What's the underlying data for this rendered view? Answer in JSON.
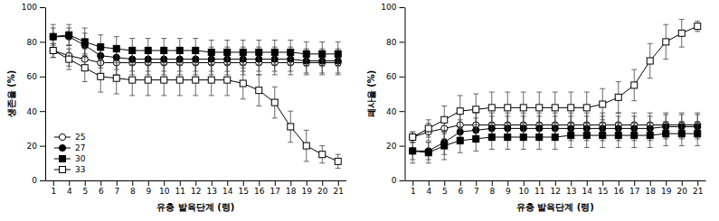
{
  "chart_data": [
    {
      "type": "line",
      "x_label": "유충 발육단계 (령)",
      "y_label": "생존율 (%)",
      "categories": [
        "1",
        "4",
        "5",
        "6",
        "7",
        "8",
        "9",
        "10",
        "11",
        "12",
        "13",
        "14",
        "15",
        "16",
        "17",
        "18",
        "19",
        "20",
        "21"
      ],
      "ylim": [
        0,
        100
      ],
      "yticks": [
        0,
        20,
        40,
        60,
        80,
        100
      ],
      "legend": "lower left",
      "series": [
        {
          "name": "25",
          "color": "#000000",
          "marker": "circle-open",
          "values": [
            75,
            72,
            70,
            68,
            68,
            68,
            68,
            68,
            68,
            68,
            68,
            68,
            68,
            68,
            68,
            68,
            68,
            68,
            68
          ],
          "errors": [
            4,
            6,
            6,
            7,
            7,
            7,
            7,
            7,
            7,
            7,
            7,
            7,
            7,
            7,
            7,
            7,
            7,
            7,
            7
          ]
        },
        {
          "name": "27",
          "color": "#000000",
          "marker": "circle",
          "values": [
            83,
            83,
            78,
            72,
            71,
            70,
            70,
            70,
            70,
            70,
            70,
            70,
            70,
            70,
            70,
            70,
            69,
            69,
            69
          ],
          "errors": [
            5,
            5,
            7,
            7,
            7,
            7,
            7,
            7,
            7,
            7,
            7,
            7,
            7,
            7,
            7,
            7,
            7,
            7,
            7
          ]
        },
        {
          "name": "30",
          "color": "#000000",
          "marker": "square",
          "values": [
            83,
            84,
            80,
            77,
            76,
            75,
            75,
            75,
            75,
            75,
            74,
            74,
            74,
            74,
            74,
            74,
            73,
            73,
            73
          ],
          "errors": [
            7,
            6,
            8,
            7,
            7,
            7,
            7,
            7,
            7,
            7,
            7,
            7,
            7,
            7,
            7,
            7,
            7,
            7,
            7
          ]
        },
        {
          "name": "33",
          "color": "#000000",
          "marker": "square-open",
          "values": [
            75,
            70,
            65,
            60,
            59,
            58,
            58,
            58,
            58,
            58,
            58,
            58,
            56,
            52,
            45,
            31,
            20,
            15,
            11
          ],
          "errors": [
            4,
            6,
            8,
            9,
            9,
            9,
            9,
            9,
            9,
            9,
            9,
            9,
            9,
            9,
            9,
            9,
            9,
            5,
            4
          ]
        }
      ]
    },
    {
      "type": "line",
      "x_label": "유충 발육단계 (령)",
      "y_label": "폐사율 (%)",
      "categories": [
        "1",
        "4",
        "5",
        "6",
        "7",
        "8",
        "9",
        "10",
        "11",
        "12",
        "13",
        "14",
        "15",
        "16",
        "17",
        "18",
        "19",
        "20",
        "21"
      ],
      "ylim": [
        0,
        100
      ],
      "yticks": [
        0,
        20,
        40,
        60,
        80,
        100
      ],
      "series": [
        {
          "name": "25",
          "color": "#000000",
          "marker": "circle-open",
          "values": [
            25,
            28,
            30,
            32,
            32,
            32,
            32,
            32,
            32,
            32,
            32,
            32,
            32,
            32,
            32,
            32,
            32,
            32,
            32
          ],
          "errors": [
            3,
            5,
            6,
            7,
            7,
            7,
            7,
            7,
            7,
            7,
            7,
            7,
            7,
            7,
            7,
            7,
            7,
            7,
            7
          ]
        },
        {
          "name": "27",
          "color": "#000000",
          "marker": "circle",
          "values": [
            17,
            17,
            22,
            28,
            29,
            30,
            30,
            30,
            30,
            30,
            30,
            30,
            30,
            30,
            30,
            30,
            31,
            31,
            31
          ],
          "errors": [
            5,
            5,
            7,
            7,
            7,
            7,
            7,
            7,
            7,
            7,
            7,
            7,
            7,
            7,
            7,
            7,
            7,
            7,
            7
          ]
        },
        {
          "name": "30",
          "color": "#000000",
          "marker": "square",
          "values": [
            17,
            16,
            20,
            23,
            24,
            25,
            25,
            25,
            25,
            25,
            26,
            26,
            26,
            26,
            26,
            26,
            27,
            27,
            27
          ],
          "errors": [
            7,
            6,
            8,
            7,
            7,
            7,
            7,
            7,
            7,
            7,
            7,
            7,
            7,
            7,
            7,
            7,
            7,
            7,
            7
          ]
        },
        {
          "name": "33",
          "color": "#000000",
          "marker": "square-open",
          "values": [
            25,
            30,
            35,
            40,
            41,
            42,
            42,
            42,
            42,
            42,
            42,
            42,
            44,
            48,
            55,
            69,
            80,
            85,
            89
          ],
          "errors": [
            3,
            5,
            8,
            9,
            9,
            9,
            9,
            9,
            9,
            9,
            9,
            9,
            9,
            9,
            9,
            10,
            10,
            8,
            3
          ]
        }
      ]
    }
  ]
}
